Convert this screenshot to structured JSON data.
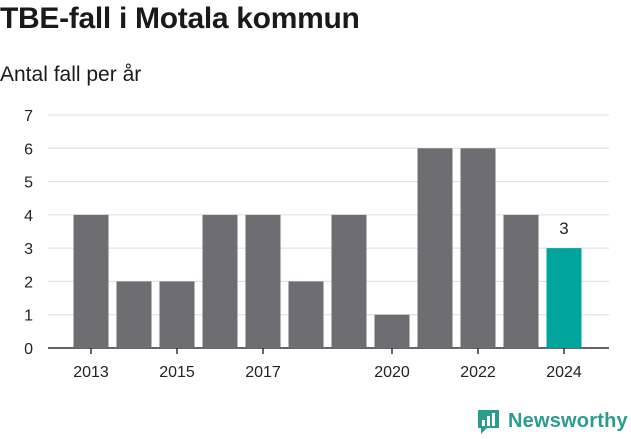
{
  "chart_data": {
    "type": "bar",
    "title": "TBE-fall i Motala kommun",
    "subtitle": "Antal fall per år",
    "categories": [
      "2013",
      "2014",
      "2015",
      "2016",
      "2017",
      "2018",
      "2019",
      "2020",
      "2021",
      "2022",
      "2023",
      "2024"
    ],
    "values": [
      4,
      2,
      2,
      4,
      4,
      2,
      4,
      1,
      6,
      6,
      4,
      3
    ],
    "x_tick_labels": [
      "2013",
      "2015",
      "2017",
      "2020",
      "2022",
      "2024"
    ],
    "y_ticks": [
      "0",
      "1",
      "2",
      "3",
      "4",
      "5",
      "6",
      "7"
    ],
    "ylim": [
      0,
      7
    ],
    "grid": true,
    "bar_color": "#6e6d72",
    "highlight_color": "#00a49a",
    "highlight_index": 11,
    "highlight_label": "3"
  },
  "brand": {
    "name": "Newsworthy",
    "color": "#2a9d8f",
    "icon": "bar-chart-logo-icon"
  }
}
